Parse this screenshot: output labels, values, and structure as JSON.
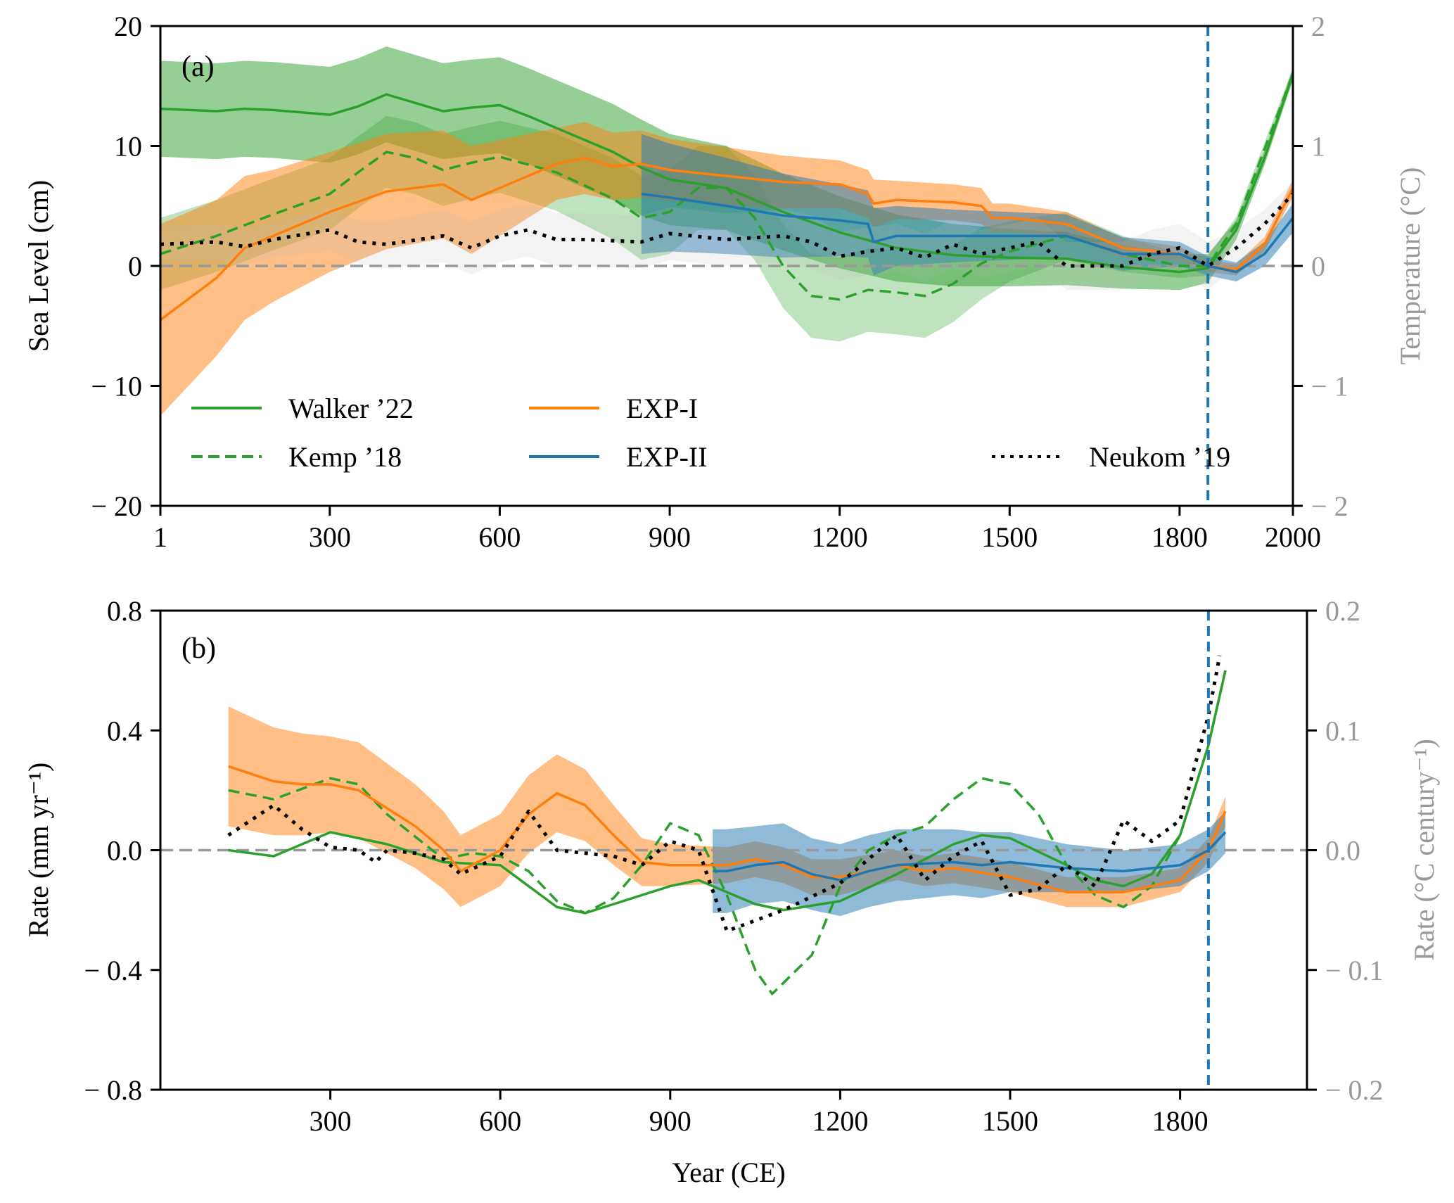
{
  "chart_data": [
    {
      "type": "line",
      "panel_label": "(a)",
      "title": "",
      "xlabel": "",
      "ylabel": "Sea Level (cm)",
      "ylabel_right": "Temperature (°C)",
      "xlim": [
        1,
        2000
      ],
      "ylim": [
        -20,
        20
      ],
      "ylim_right": [
        -2,
        2
      ],
      "xticks": [
        1,
        300,
        600,
        900,
        1200,
        1500,
        1800,
        2000
      ],
      "xtick_labels": [
        "1",
        "300",
        "600",
        "900",
        "1200",
        "1500",
        "1800",
        "2000"
      ],
      "yticks": [
        20,
        10,
        0,
        -10,
        -20
      ],
      "ytick_labels": [
        "20",
        "10",
        "0",
        "− 10",
        "− 20"
      ],
      "yticks_right": [
        2,
        1,
        0,
        -1,
        -2
      ],
      "ytick_labels_right": [
        "2",
        "1",
        "0",
        "− 1",
        "− 2"
      ],
      "zero_line": 0,
      "vertical_line_x": 1850,
      "grid": false,
      "legend_position": "lower",
      "series": [
        {
          "name": "Walker ’22",
          "color": "#2ca02c",
          "style": "solid",
          "axis": "left",
          "x": [
            1,
            100,
            150,
            200,
            300,
            350,
            400,
            450,
            500,
            550,
            600,
            650,
            700,
            800,
            850,
            900,
            1000,
            1100,
            1200,
            1300,
            1400,
            1500,
            1600,
            1700,
            1800,
            1850,
            1900,
            1950,
            2000
          ],
          "y": [
            13.1,
            12.9,
            13.1,
            13.0,
            12.6,
            13.3,
            14.3,
            13.6,
            12.9,
            13.2,
            13.4,
            12.5,
            11.5,
            9.5,
            8.2,
            7.2,
            6.5,
            4.5,
            2.8,
            1.5,
            0.9,
            0.7,
            0.6,
            -0.1,
            -0.5,
            -0.2,
            3.0,
            9.0,
            16.0
          ],
          "band": [
            4.0,
            4.0,
            4.0,
            4.0,
            4.0,
            4.0,
            4.0,
            4.0,
            4.0,
            4.0,
            4.0,
            4.0,
            4.0,
            4.0,
            4.0,
            3.8,
            3.5,
            3.2,
            3.0,
            2.8,
            2.6,
            2.4,
            2.2,
            1.8,
            1.5,
            1.2,
            0.8,
            0.6,
            0.5
          ]
        },
        {
          "name": "Kemp ’18",
          "color": "#2ca02c",
          "style": "dashed",
          "axis": "left",
          "x": [
            1,
            100,
            200,
            300,
            350,
            400,
            450,
            500,
            550,
            600,
            700,
            800,
            850,
            900,
            950,
            1000,
            1050,
            1100,
            1150,
            1200,
            1250,
            1300,
            1350,
            1400,
            1450,
            1500,
            1600,
            1700,
            1800,
            1850,
            1900,
            2000
          ],
          "y": [
            1.0,
            2.5,
            4.3,
            6.0,
            7.8,
            9.5,
            9.0,
            8.0,
            8.6,
            9.1,
            7.8,
            5.6,
            4.0,
            4.5,
            6.5,
            6.5,
            4.0,
            0.0,
            -2.5,
            -2.8,
            -2.0,
            -2.2,
            -2.5,
            -1.5,
            0.2,
            1.2,
            2.5,
            1.0,
            0.0,
            0.0,
            3.5,
            16.0
          ],
          "band": [
            3.0,
            3.0,
            3.0,
            3.0,
            3.0,
            3.0,
            3.0,
            3.0,
            3.0,
            3.0,
            3.2,
            3.4,
            3.5,
            3.5,
            3.5,
            3.5,
            3.5,
            3.5,
            3.5,
            3.5,
            3.5,
            3.5,
            3.5,
            3.2,
            3.0,
            2.5,
            2.0,
            1.5,
            1.0,
            0.8,
            0.6,
            0.5
          ]
        },
        {
          "name": "EXP-I",
          "color": "#ff7f0e",
          "style": "solid",
          "axis": "left",
          "x": [
            1,
            100,
            150,
            200,
            300,
            400,
            500,
            550,
            600,
            650,
            700,
            750,
            800,
            850,
            900,
            1000,
            1100,
            1200,
            1250,
            1260,
            1300,
            1400,
            1450,
            1470,
            1500,
            1600,
            1700,
            1800,
            1850,
            1900,
            1950,
            2000
          ],
          "y": [
            -4.5,
            -1.0,
            1.5,
            2.5,
            4.5,
            6.2,
            6.8,
            5.5,
            6.5,
            7.5,
            8.5,
            9.0,
            8.3,
            8.5,
            8.0,
            7.5,
            7.0,
            6.8,
            6.0,
            5.2,
            5.5,
            5.3,
            5.0,
            4.0,
            4.0,
            3.5,
            1.5,
            1.0,
            0.0,
            -0.3,
            1.8,
            6.5
          ],
          "band": [
            8.0,
            6.5,
            6.0,
            5.5,
            5.0,
            4.8,
            4.5,
            4.5,
            4.0,
            3.5,
            3.0,
            3.0,
            2.8,
            2.8,
            2.6,
            2.4,
            2.2,
            2.0,
            2.0,
            2.0,
            1.6,
            1.5,
            1.5,
            1.2,
            1.2,
            1.0,
            0.8,
            0.6,
            0.5,
            0.5,
            0.6,
            0.7
          ]
        },
        {
          "name": "EXP-II",
          "color": "#1f77b4",
          "style": "solid",
          "axis": "left",
          "x": [
            850,
            900,
            1000,
            1100,
            1200,
            1250,
            1260,
            1300,
            1400,
            1500,
            1600,
            1700,
            1800,
            1850,
            1900,
            1950,
            2000
          ],
          "y": [
            6.0,
            5.7,
            5.0,
            4.2,
            3.8,
            3.5,
            2.0,
            2.5,
            2.5,
            2.5,
            2.5,
            1.0,
            1.0,
            0.0,
            -0.5,
            1.0,
            4.0
          ],
          "band": [
            5.0,
            4.5,
            4.0,
            3.5,
            3.0,
            2.8,
            2.8,
            2.5,
            2.2,
            2.0,
            1.8,
            1.4,
            1.0,
            0.8,
            0.8,
            1.0,
            1.2
          ]
        },
        {
          "name": "Neukom ’19",
          "color": "#000000",
          "style": "dotted",
          "axis": "right",
          "x": [
            1,
            100,
            150,
            200,
            300,
            350,
            400,
            500,
            550,
            600,
            650,
            700,
            750,
            850,
            900,
            1000,
            1100,
            1150,
            1200,
            1250,
            1300,
            1350,
            1400,
            1450,
            1500,
            1550,
            1600,
            1700,
            1750,
            1800,
            1850,
            1900,
            1950,
            2000
          ],
          "y": [
            0.18,
            0.2,
            0.16,
            0.22,
            0.3,
            0.2,
            0.18,
            0.25,
            0.15,
            0.25,
            0.3,
            0.22,
            0.22,
            0.2,
            0.27,
            0.22,
            0.25,
            0.2,
            0.08,
            0.12,
            0.15,
            0.07,
            0.18,
            0.1,
            0.15,
            0.2,
            0.0,
            0.0,
            0.1,
            0.15,
            0.0,
            0.15,
            0.35,
            0.6
          ],
          "band": [
            0.15,
            0.15,
            0.15,
            0.15,
            0.18,
            0.18,
            0.2,
            0.22,
            0.22,
            0.22,
            0.22,
            0.22,
            0.22,
            0.22,
            0.22,
            0.22,
            0.22,
            0.22,
            0.2,
            0.2,
            0.2,
            0.2,
            0.2,
            0.2,
            0.2,
            0.2,
            0.2,
            0.2,
            0.2,
            0.2,
            0.2,
            0.15,
            0.12,
            0.1
          ]
        }
      ]
    },
    {
      "type": "line",
      "panel_label": "(b)",
      "title": "",
      "xlabel": "Year (CE)",
      "ylabel": "Rate (mm yr⁻¹)",
      "ylabel_right": "Rate (°C century⁻¹)",
      "xlim": [
        0,
        2024
      ],
      "ylim": [
        -0.8,
        0.8
      ],
      "ylim_right": [
        -0.2,
        0.2
      ],
      "xticks": [
        300,
        600,
        900,
        1200,
        1500,
        1800
      ],
      "xtick_labels": [
        "300",
        "600",
        "900",
        "1200",
        "1500",
        "1800"
      ],
      "yticks": [
        0.8,
        0.4,
        0.0,
        -0.4,
        -0.8
      ],
      "ytick_labels": [
        "0.8",
        "0.4",
        "0.0",
        "− 0.4",
        "− 0.8"
      ],
      "yticks_right": [
        0.2,
        0.1,
        0.0,
        -0.1,
        -0.2
      ],
      "ytick_labels_right": [
        "0.2",
        "0.1",
        "0.0",
        "− 0.1",
        "− 0.2"
      ],
      "zero_line": 0,
      "vertical_line_x": 1850,
      "grid": false,
      "series": [
        {
          "name": "Walker ’22",
          "color": "#2ca02c",
          "style": "solid",
          "axis": "left",
          "x": [
            120,
            200,
            300,
            400,
            500,
            600,
            650,
            700,
            750,
            800,
            900,
            950,
            1000,
            1050,
            1100,
            1200,
            1300,
            1400,
            1450,
            1500,
            1600,
            1650,
            1700,
            1750,
            1800,
            1850,
            1880
          ],
          "y": [
            0.0,
            -0.02,
            0.06,
            0.02,
            -0.04,
            -0.05,
            -0.12,
            -0.19,
            -0.21,
            -0.18,
            -0.12,
            -0.1,
            -0.14,
            -0.18,
            -0.2,
            -0.17,
            -0.08,
            0.02,
            0.05,
            0.04,
            -0.05,
            -0.1,
            -0.12,
            -0.08,
            0.05,
            0.35,
            0.6
          ]
        },
        {
          "name": "Kemp ’18",
          "color": "#2ca02c",
          "style": "dashed",
          "axis": "left",
          "x": [
            120,
            200,
            300,
            350,
            400,
            500,
            550,
            600,
            650,
            700,
            750,
            800,
            850,
            900,
            950,
            1000,
            1050,
            1080,
            1150,
            1200,
            1250,
            1300,
            1350,
            1400,
            1450,
            1500,
            1550,
            1600,
            1650,
            1700,
            1750,
            1800,
            1850,
            1880
          ],
          "y": [
            0.2,
            0.17,
            0.24,
            0.22,
            0.12,
            -0.03,
            -0.01,
            -0.02,
            -0.07,
            -0.17,
            -0.21,
            -0.16,
            -0.05,
            0.09,
            0.05,
            -0.15,
            -0.4,
            -0.48,
            -0.35,
            -0.12,
            0.0,
            0.05,
            0.08,
            0.17,
            0.24,
            0.22,
            0.12,
            -0.05,
            -0.15,
            -0.19,
            -0.12,
            0.05,
            0.35,
            0.6
          ]
        },
        {
          "name": "EXP-I",
          "color": "#ff7f0e",
          "style": "solid",
          "axis": "left",
          "x": [
            120,
            200,
            250,
            300,
            350,
            400,
            450,
            500,
            530,
            600,
            650,
            700,
            750,
            800,
            850,
            900,
            1000,
            1050,
            1100,
            1150,
            1200,
            1300,
            1350,
            1400,
            1500,
            1600,
            1700,
            1800,
            1850,
            1880
          ],
          "y": [
            0.28,
            0.23,
            0.22,
            0.22,
            0.2,
            0.14,
            0.08,
            0.0,
            -0.07,
            0.0,
            0.12,
            0.19,
            0.15,
            0.05,
            -0.04,
            -0.05,
            -0.05,
            -0.03,
            -0.05,
            -0.09,
            -0.09,
            -0.05,
            -0.07,
            -0.06,
            -0.09,
            -0.14,
            -0.14,
            -0.1,
            0.0,
            0.13
          ],
          "band": [
            0.2,
            0.18,
            0.17,
            0.16,
            0.16,
            0.15,
            0.14,
            0.13,
            0.12,
            0.12,
            0.13,
            0.13,
            0.12,
            0.1,
            0.08,
            0.07,
            0.06,
            0.06,
            0.06,
            0.06,
            0.06,
            0.05,
            0.05,
            0.05,
            0.05,
            0.05,
            0.05,
            0.04,
            0.04,
            0.05
          ]
        },
        {
          "name": "EXP-II",
          "color": "#1f77b4",
          "style": "solid",
          "axis": "left",
          "x": [
            975,
            1000,
            1050,
            1100,
            1150,
            1200,
            1250,
            1300,
            1400,
            1450,
            1500,
            1600,
            1700,
            1800,
            1850,
            1880
          ],
          "y": [
            -0.07,
            -0.07,
            -0.05,
            -0.04,
            -0.08,
            -0.1,
            -0.07,
            -0.05,
            -0.04,
            -0.05,
            -0.04,
            -0.06,
            -0.07,
            -0.05,
            0.0,
            0.06
          ],
          "band": [
            0.14,
            0.14,
            0.13,
            0.13,
            0.12,
            0.12,
            0.12,
            0.12,
            0.11,
            0.11,
            0.1,
            0.08,
            0.07,
            0.07,
            0.07,
            0.07
          ]
        },
        {
          "name": "Neukom ’19",
          "color": "#000000",
          "style": "dotted",
          "axis": "right",
          "x": [
            120,
            200,
            250,
            300,
            350,
            380,
            400,
            450,
            500,
            530,
            600,
            650,
            700,
            800,
            850,
            900,
            950,
            1000,
            1100,
            1200,
            1250,
            1300,
            1350,
            1400,
            1450,
            1500,
            1550,
            1600,
            1650,
            1700,
            1750,
            1800,
            1850,
            1870
          ],
          "y": [
            0.0125,
            0.0375,
            0.0175,
            0.0025,
            0.0,
            -0.01,
            0.0,
            -0.0025,
            -0.0075,
            -0.02,
            -0.005,
            0.0325,
            0.0,
            -0.005,
            -0.0125,
            0.0075,
            0.0,
            -0.0675,
            -0.05,
            -0.0275,
            -0.0075,
            0.0125,
            -0.025,
            -0.005,
            0.0075,
            -0.0375,
            -0.0325,
            -0.0125,
            -0.03,
            0.025,
            0.0075,
            0.025,
            0.1125,
            0.1625
          ]
        }
      ]
    }
  ]
}
